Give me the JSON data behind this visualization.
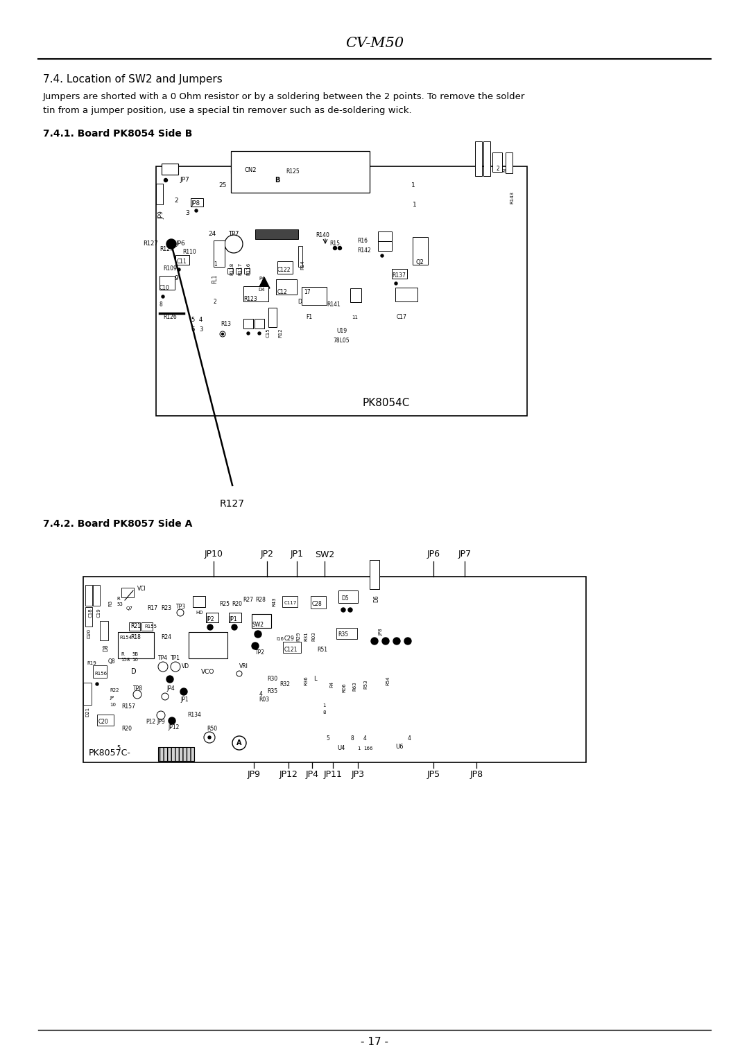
{
  "page_title": "CV-M50",
  "section_title": "7.4. Location of SW2 and Jumpers",
  "body_line1": "Jumpers are shorted with a 0 Ohm resistor or by a soldering between the 2 points. To remove the solder",
  "body_line2": "tin from a jumper position, use a special tin remover such as de-soldering wick.",
  "subsection1": "7.4.1. Board PK8054 Side B",
  "subsection2": "7.4.2. Board PK8057 Side A",
  "r127_label": "R127",
  "board1_label": "PK8054C",
  "board2_label": "PK8057C-",
  "footer_text": "- 17 -",
  "bg_color": "#ffffff",
  "border_color": "#000000",
  "text_color": "#000000"
}
